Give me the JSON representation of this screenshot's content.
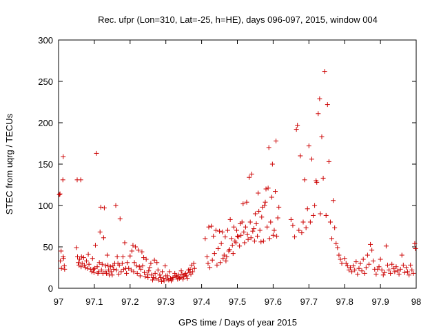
{
  "chart_data": {
    "type": "scatter",
    "title": "Rec. ufpr (Lon=310, Lat=-25, h=HE), days 096-097, 2015, window 004",
    "xlabel": "GPS time / Days of year 2015",
    "ylabel": "STEC from uqrg / TECUs",
    "xlim": [
      97,
      98
    ],
    "ylim": [
      0,
      300
    ],
    "x_ticks": [
      "97",
      "97.1",
      "97.2",
      "97.3",
      "97.4",
      "97.5",
      "97.6",
      "97.7",
      "97.8",
      "97.9",
      "98"
    ],
    "y_ticks": [
      "0",
      "50",
      "100",
      "150",
      "200",
      "250",
      "300"
    ],
    "grid": false,
    "legend": "none",
    "marker": "plus",
    "color": "#cc0000",
    "points": [
      [
        97.002,
        113
      ],
      [
        97.004,
        114
      ],
      [
        97.005,
        33
      ],
      [
        97.007,
        45
      ],
      [
        97.008,
        24
      ],
      [
        97.012,
        131
      ],
      [
        97.013,
        159
      ],
      [
        97.013,
        38
      ],
      [
        97.014,
        36
      ],
      [
        97.016,
        27
      ],
      [
        97.017,
        23
      ],
      [
        97.05,
        49
      ],
      [
        97.052,
        131
      ],
      [
        97.053,
        38
      ],
      [
        97.055,
        31
      ],
      [
        97.057,
        28
      ],
      [
        97.059,
        35
      ],
      [
        97.062,
        131
      ],
      [
        97.063,
        26
      ],
      [
        97.064,
        38
      ],
      [
        97.066,
        30
      ],
      [
        97.07,
        37
      ],
      [
        97.072,
        28
      ],
      [
        97.075,
        25
      ],
      [
        97.078,
        33
      ],
      [
        97.081,
        24
      ],
      [
        97.083,
        41
      ],
      [
        97.085,
        29
      ],
      [
        97.09,
        23
      ],
      [
        97.093,
        20
      ],
      [
        97.095,
        36
      ],
      [
        97.097,
        23
      ],
      [
        97.099,
        19
      ],
      [
        97.101,
        24
      ],
      [
        97.103,
        52
      ],
      [
        97.106,
        163
      ],
      [
        97.108,
        26
      ],
      [
        97.11,
        18
      ],
      [
        97.112,
        20
      ],
      [
        97.114,
        31
      ],
      [
        97.116,
        68
      ],
      [
        97.118,
        98
      ],
      [
        97.12,
        22
      ],
      [
        97.122,
        29
      ],
      [
        97.124,
        18
      ],
      [
        97.126,
        61
      ],
      [
        97.128,
        97
      ],
      [
        97.13,
        20
      ],
      [
        97.132,
        27
      ],
      [
        97.134,
        18
      ],
      [
        97.136,
        40
      ],
      [
        97.138,
        28
      ],
      [
        97.14,
        22
      ],
      [
        97.142,
        16
      ],
      [
        97.145,
        26
      ],
      [
        97.147,
        20
      ],
      [
        97.15,
        16
      ],
      [
        97.152,
        27
      ],
      [
        97.154,
        23
      ],
      [
        97.157,
        30
      ],
      [
        97.16,
        100
      ],
      [
        97.162,
        22
      ],
      [
        97.164,
        38
      ],
      [
        97.166,
        30
      ],
      [
        97.168,
        17
      ],
      [
        97.17,
        28
      ],
      [
        97.172,
        84
      ],
      [
        97.175,
        20
      ],
      [
        97.178,
        30
      ],
      [
        97.18,
        38
      ],
      [
        97.182,
        23
      ],
      [
        97.185,
        55
      ],
      [
        97.188,
        24
      ],
      [
        97.19,
        18
      ],
      [
        97.192,
        31
      ],
      [
        97.196,
        24
      ],
      [
        97.2,
        39
      ],
      [
        97.203,
        22
      ],
      [
        97.205,
        45
      ],
      [
        97.208,
        52
      ],
      [
        97.21,
        20
      ],
      [
        97.212,
        31
      ],
      [
        97.215,
        50
      ],
      [
        97.218,
        27
      ],
      [
        97.22,
        18
      ],
      [
        97.223,
        46
      ],
      [
        97.226,
        26
      ],
      [
        97.228,
        15
      ],
      [
        97.23,
        23
      ],
      [
        97.233,
        44
      ],
      [
        97.235,
        27
      ],
      [
        97.238,
        37
      ],
      [
        97.24,
        19
      ],
      [
        97.242,
        14
      ],
      [
        97.245,
        35
      ],
      [
        97.248,
        17
      ],
      [
        97.25,
        13
      ],
      [
        97.252,
        21
      ],
      [
        97.255,
        25
      ],
      [
        97.258,
        30
      ],
      [
        97.26,
        16
      ],
      [
        97.263,
        10
      ],
      [
        97.265,
        13
      ],
      [
        97.268,
        34
      ],
      [
        97.27,
        18
      ],
      [
        97.272,
        12
      ],
      [
        97.275,
        31
      ],
      [
        97.278,
        22
      ],
      [
        97.28,
        10
      ],
      [
        97.283,
        16
      ],
      [
        97.285,
        13
      ],
      [
        97.288,
        8
      ],
      [
        97.29,
        20
      ],
      [
        97.293,
        12
      ],
      [
        97.295,
        9
      ],
      [
        97.298,
        27
      ],
      [
        97.3,
        15
      ],
      [
        97.303,
        11
      ],
      [
        97.305,
        15
      ],
      [
        97.308,
        10
      ],
      [
        97.31,
        20
      ],
      [
        97.313,
        12
      ],
      [
        97.315,
        9
      ],
      [
        97.318,
        11
      ],
      [
        97.32,
        13
      ],
      [
        97.325,
        18
      ],
      [
        97.328,
        15
      ],
      [
        97.33,
        14
      ],
      [
        97.333,
        11
      ],
      [
        97.335,
        16
      ],
      [
        97.338,
        12
      ],
      [
        97.34,
        13
      ],
      [
        97.343,
        21
      ],
      [
        97.345,
        17
      ],
      [
        97.348,
        11
      ],
      [
        97.35,
        14
      ],
      [
        97.353,
        16
      ],
      [
        97.355,
        18
      ],
      [
        97.358,
        15
      ],
      [
        97.36,
        12
      ],
      [
        97.363,
        22
      ],
      [
        97.365,
        19
      ],
      [
        97.368,
        23
      ],
      [
        97.37,
        17
      ],
      [
        97.372,
        28
      ],
      [
        97.375,
        20
      ],
      [
        97.378,
        30
      ],
      [
        97.38,
        24
      ],
      [
        97.41,
        60
      ],
      [
        97.415,
        38
      ],
      [
        97.418,
        30
      ],
      [
        97.42,
        74
      ],
      [
        97.423,
        25
      ],
      [
        97.427,
        75
      ],
      [
        97.43,
        34
      ],
      [
        97.433,
        63
      ],
      [
        97.436,
        42
      ],
      [
        97.44,
        70
      ],
      [
        97.443,
        28
      ],
      [
        97.446,
        48
      ],
      [
        97.45,
        69
      ],
      [
        97.452,
        31
      ],
      [
        97.455,
        54
      ],
      [
        97.458,
        68
      ],
      [
        97.46,
        36
      ],
      [
        97.463,
        40
      ],
      [
        97.466,
        62
      ],
      [
        97.468,
        33
      ],
      [
        97.47,
        38
      ],
      [
        97.473,
        70
      ],
      [
        97.476,
        45
      ],
      [
        97.478,
        47
      ],
      [
        97.48,
        83
      ],
      [
        97.483,
        60
      ],
      [
        97.486,
        52
      ],
      [
        97.488,
        42
      ],
      [
        97.49,
        74
      ],
      [
        97.493,
        57
      ],
      [
        97.496,
        55
      ],
      [
        97.498,
        70
      ],
      [
        97.5,
        63
      ],
      [
        97.503,
        62
      ],
      [
        97.506,
        51
      ],
      [
        97.508,
        78
      ],
      [
        97.51,
        64
      ],
      [
        97.513,
        80
      ],
      [
        97.516,
        102
      ],
      [
        97.518,
        68
      ],
      [
        97.52,
        55
      ],
      [
        97.523,
        74
      ],
      [
        97.526,
        104
      ],
      [
        97.528,
        65
      ],
      [
        97.53,
        59
      ],
      [
        97.533,
        134
      ],
      [
        97.536,
        80
      ],
      [
        97.538,
        61
      ],
      [
        97.54,
        138
      ],
      [
        97.543,
        69
      ],
      [
        97.546,
        72
      ],
      [
        97.548,
        57
      ],
      [
        97.55,
        90
      ],
      [
        97.553,
        78
      ],
      [
        97.556,
        63
      ],
      [
        97.558,
        115
      ],
      [
        97.56,
        93
      ],
      [
        97.563,
        70
      ],
      [
        97.566,
        56
      ],
      [
        97.568,
        86
      ],
      [
        97.57,
        98
      ],
      [
        97.573,
        57
      ],
      [
        97.576,
        100
      ],
      [
        97.578,
        104
      ],
      [
        97.58,
        120
      ],
      [
        97.583,
        74
      ],
      [
        97.586,
        121
      ],
      [
        97.588,
        170
      ],
      [
        97.59,
        60
      ],
      [
        97.593,
        80
      ],
      [
        97.596,
        110
      ],
      [
        97.598,
        150
      ],
      [
        97.6,
        64
      ],
      [
        97.603,
        70
      ],
      [
        97.606,
        117
      ],
      [
        97.608,
        178
      ],
      [
        97.61,
        63
      ],
      [
        97.613,
        85
      ],
      [
        97.616,
        98
      ],
      [
        97.65,
        83
      ],
      [
        97.655,
        76
      ],
      [
        97.66,
        62
      ],
      [
        97.665,
        192
      ],
      [
        97.668,
        197
      ],
      [
        97.672,
        70
      ],
      [
        97.676,
        160
      ],
      [
        97.68,
        67
      ],
      [
        97.684,
        80
      ],
      [
        97.688,
        131
      ],
      [
        97.692,
        73
      ],
      [
        97.696,
        96
      ],
      [
        97.7,
        172
      ],
      [
        97.704,
        80
      ],
      [
        97.708,
        156
      ],
      [
        97.712,
        88
      ],
      [
        97.716,
        100
      ],
      [
        97.72,
        130
      ],
      [
        97.722,
        128
      ],
      [
        97.726,
        211
      ],
      [
        97.73,
        229
      ],
      [
        97.732,
        90
      ],
      [
        97.736,
        183
      ],
      [
        97.74,
        133
      ],
      [
        97.744,
        262
      ],
      [
        97.748,
        88
      ],
      [
        97.752,
        222
      ],
      [
        97.756,
        153
      ],
      [
        97.76,
        80
      ],
      [
        97.764,
        60
      ],
      [
        97.768,
        106
      ],
      [
        97.772,
        73
      ],
      [
        97.776,
        54
      ],
      [
        97.78,
        49
      ],
      [
        97.784,
        40
      ],
      [
        97.788,
        35
      ],
      [
        97.792,
        30
      ],
      [
        97.8,
        36
      ],
      [
        97.804,
        30
      ],
      [
        97.808,
        27
      ],
      [
        97.812,
        22
      ],
      [
        97.816,
        25
      ],
      [
        97.82,
        20
      ],
      [
        97.824,
        27
      ],
      [
        97.828,
        22
      ],
      [
        97.832,
        32
      ],
      [
        97.836,
        17
      ],
      [
        97.84,
        24
      ],
      [
        97.844,
        30
      ],
      [
        97.848,
        21
      ],
      [
        97.852,
        35
      ],
      [
        97.856,
        18
      ],
      [
        97.86,
        25
      ],
      [
        97.864,
        40
      ],
      [
        97.868,
        29
      ],
      [
        97.872,
        53
      ],
      [
        97.876,
        46
      ],
      [
        97.88,
        33
      ],
      [
        97.884,
        23
      ],
      [
        97.888,
        17
      ],
      [
        97.892,
        23
      ],
      [
        97.896,
        26
      ],
      [
        97.9,
        35
      ],
      [
        97.904,
        22
      ],
      [
        97.908,
        16
      ],
      [
        97.912,
        19
      ],
      [
        97.916,
        51
      ],
      [
        97.92,
        28
      ],
      [
        97.924,
        22
      ],
      [
        97.928,
        18
      ],
      [
        97.932,
        29
      ],
      [
        97.936,
        24
      ],
      [
        97.94,
        20
      ],
      [
        97.944,
        26
      ],
      [
        97.948,
        21
      ],
      [
        97.952,
        17
      ],
      [
        97.956,
        23
      ],
      [
        97.96,
        40
      ],
      [
        97.964,
        28
      ],
      [
        97.968,
        19
      ],
      [
        97.972,
        25
      ],
      [
        97.976,
        20
      ],
      [
        97.98,
        16
      ],
      [
        97.984,
        28
      ],
      [
        97.988,
        22
      ],
      [
        97.992,
        18
      ],
      [
        97.996,
        54
      ],
      [
        97.998,
        48
      ]
    ]
  }
}
